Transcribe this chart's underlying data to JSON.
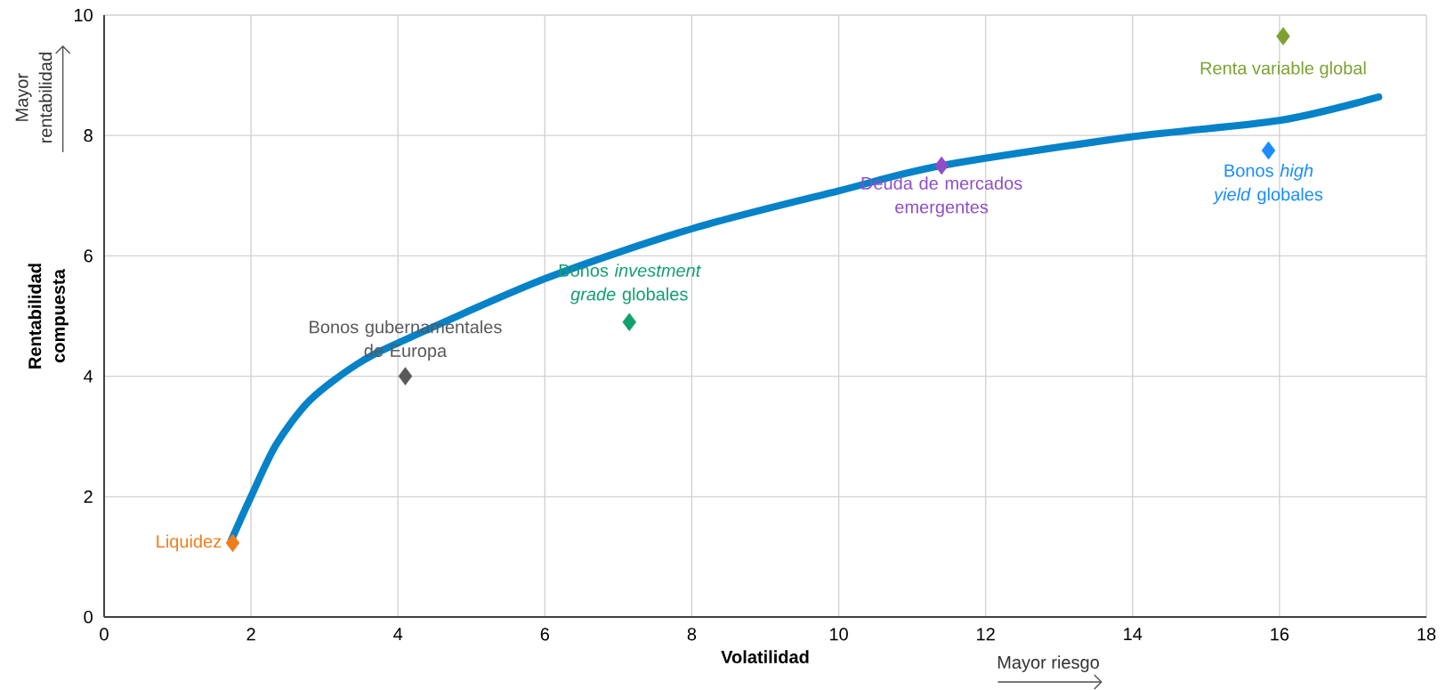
{
  "chart_data": {
    "type": "scatter",
    "xlabel": "Volatilidad",
    "ylabel": "Rentabilidad compuesta",
    "xlim": [
      0,
      18
    ],
    "ylim": [
      0,
      10
    ],
    "xticks": [
      0,
      2,
      4,
      6,
      8,
      10,
      12,
      14,
      16,
      18
    ],
    "yticks": [
      0,
      2,
      4,
      6,
      8,
      10
    ],
    "grid": true,
    "legend": false,
    "marker": "diamond",
    "annotations": [
      "Mayor rentabilidad",
      "Mayor riesgo"
    ],
    "series": [
      {
        "name": "Liquidez",
        "color": "#ee7d1a",
        "x": [
          1.75
        ],
        "values": [
          1.23
        ]
      },
      {
        "name": "Bonos gubernamentales de Europa",
        "color": "#58595b",
        "x": [
          4.1
        ],
        "values": [
          4.0
        ]
      },
      {
        "name": "Bonos *investment grade* globales",
        "color": "#12a06c",
        "x": [
          7.15
        ],
        "values": [
          4.9
        ]
      },
      {
        "name": "Deuda de mercados emergentes",
        "color": "#8e4ec6",
        "x": [
          11.4
        ],
        "values": [
          7.5
        ]
      },
      {
        "name": "Bonos *high yield* globales",
        "color": "#1a8cff",
        "x": [
          15.85
        ],
        "values": [
          7.75
        ]
      },
      {
        "name": "Renta variable global",
        "color": "#7da032",
        "x": [
          16.05
        ],
        "values": [
          9.65
        ]
      },
      {
        "type": "line",
        "marker": "none",
        "color": "#0682c8",
        "x": [
          1.73,
          2.0,
          2.34,
          2.8,
          3.43,
          4.05,
          6.0,
          8.0,
          10.0,
          11.4,
          14.0,
          16.0,
          17.35
        ],
        "values": [
          1.27,
          2.0,
          2.86,
          3.6,
          4.19,
          4.58,
          5.62,
          6.45,
          7.08,
          7.5,
          7.98,
          8.25,
          8.64
        ]
      }
    ]
  }
}
